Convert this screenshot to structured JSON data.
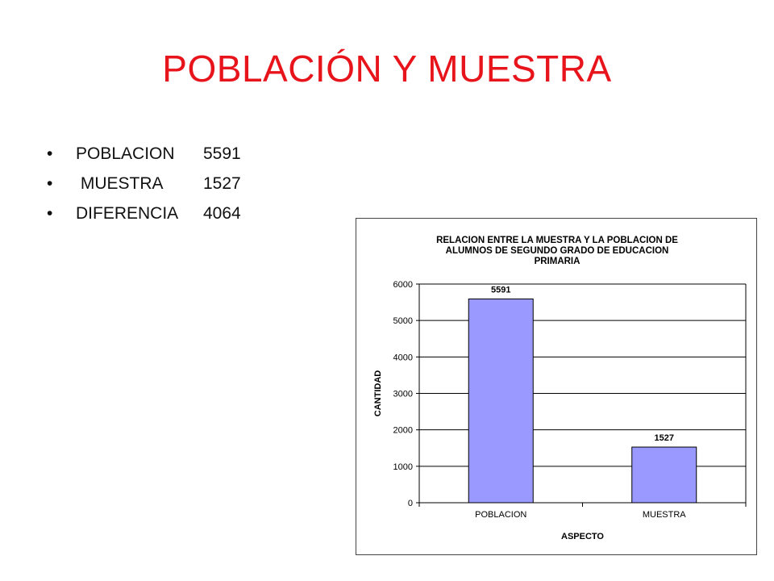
{
  "slide": {
    "title": "POBLACIÓN Y MUESTRA",
    "title_color": "#e8141b"
  },
  "bullets": [
    {
      "label": "POBLACION",
      "value": "5591"
    },
    {
      "label": " MUESTRA",
      "value": "1527"
    },
    {
      "label": "DIFERENCIA",
      "value": "4064"
    }
  ],
  "chart_data": {
    "type": "bar",
    "title_lines": [
      "RELACION ENTRE LA MUESTRA Y LA POBLACION DE",
      "ALUMNOS DE SEGUNDO GRADO DE EDUCACION",
      "PRIMARIA"
    ],
    "categories": [
      "POBLACION",
      "MUESTRA"
    ],
    "values": [
      5591,
      1527
    ],
    "data_labels": [
      "5591",
      "1527"
    ],
    "xlabel": "ASPECTO",
    "ylabel": "CANTIDAD",
    "ylim": [
      0,
      6000
    ],
    "yticks": [
      "0",
      "1000",
      "2000",
      "3000",
      "4000",
      "5000",
      "6000"
    ],
    "grid": true,
    "legend": "none",
    "bar_color": "#9999ff",
    "bar_edge_color": "#000000"
  }
}
